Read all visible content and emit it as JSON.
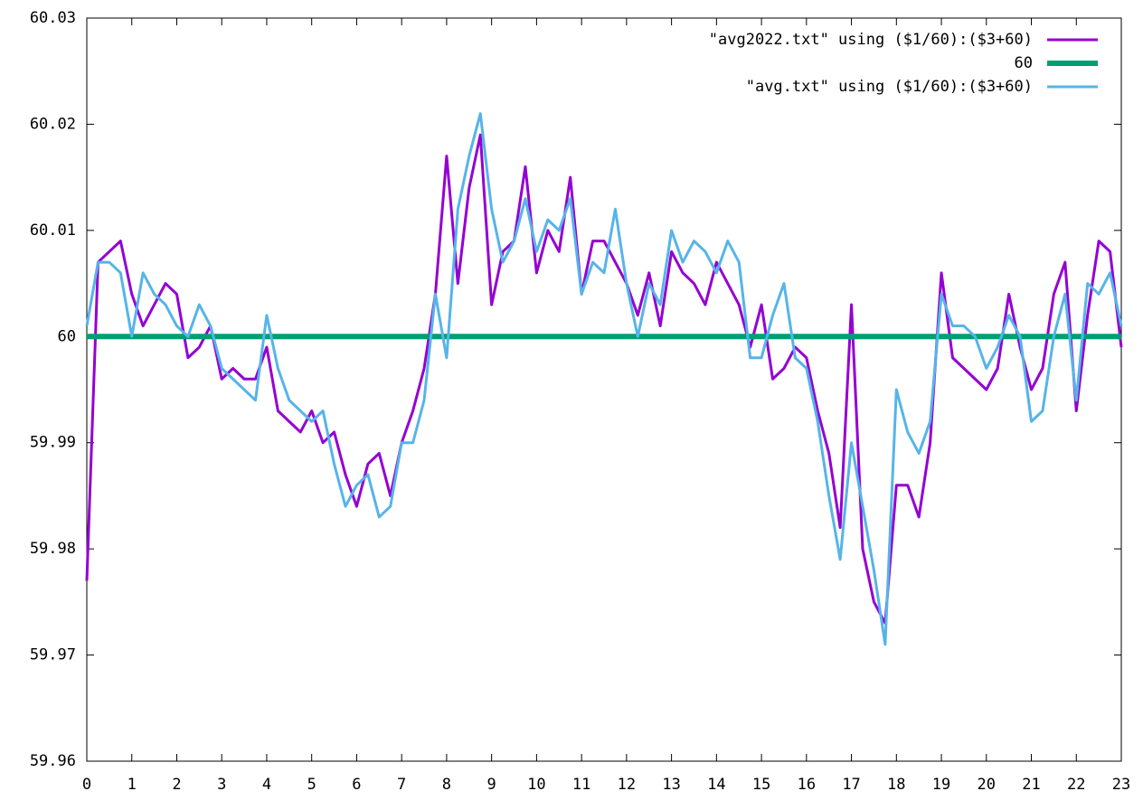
{
  "chart_data": {
    "type": "line",
    "x": [
      0,
      0.25,
      0.5,
      0.75,
      1,
      1.25,
      1.5,
      1.75,
      2,
      2.25,
      2.5,
      2.75,
      3,
      3.25,
      3.5,
      3.75,
      4,
      4.25,
      4.5,
      4.75,
      5,
      5.25,
      5.5,
      5.75,
      6,
      6.25,
      6.5,
      6.75,
      7,
      7.25,
      7.5,
      7.75,
      8,
      8.25,
      8.5,
      8.75,
      9,
      9.25,
      9.5,
      9.75,
      10,
      10.25,
      10.5,
      10.75,
      11,
      11.25,
      11.5,
      11.75,
      12,
      12.25,
      12.5,
      12.75,
      13,
      13.25,
      13.5,
      13.75,
      14,
      14.25,
      14.5,
      14.75,
      15,
      15.25,
      15.5,
      15.75,
      16,
      16.25,
      16.5,
      16.75,
      17,
      17.25,
      17.5,
      17.75,
      18,
      18.25,
      18.5,
      18.75,
      19,
      19.25,
      19.5,
      19.75,
      20,
      20.25,
      20.5,
      20.75,
      21,
      21.25,
      21.5,
      21.75,
      22,
      22.25,
      22.5,
      22.75,
      23
    ],
    "series": [
      {
        "name": "\"avg2022.txt\" using ($1/60):($3+60)",
        "color": "#9400d3",
        "values": [
          59.977,
          60.007,
          60.008,
          60.009,
          60.004,
          60.001,
          60.003,
          60.005,
          60.004,
          59.998,
          59.999,
          60.001,
          59.996,
          59.997,
          59.996,
          59.996,
          59.999,
          59.993,
          59.992,
          59.991,
          59.993,
          59.99,
          59.991,
          59.987,
          59.984,
          59.988,
          59.989,
          59.985,
          59.99,
          59.993,
          59.997,
          60.004,
          60.017,
          60.005,
          60.014,
          60.019,
          60.003,
          60.008,
          60.009,
          60.016,
          60.006,
          60.01,
          60.008,
          60.015,
          60.004,
          60.009,
          60.009,
          60.007,
          60.005,
          60.002,
          60.006,
          60.001,
          60.008,
          60.006,
          60.005,
          60.003,
          60.007,
          60.005,
          60.003,
          59.999,
          60.003,
          59.996,
          59.997,
          59.999,
          59.998,
          59.993,
          59.989,
          59.982,
          60.003,
          59.98,
          59.975,
          59.973,
          59.986,
          59.986,
          59.983,
          59.99,
          60.006,
          59.998,
          59.997,
          59.996,
          59.995,
          59.997,
          60.004,
          59.999,
          59.995,
          59.997,
          60.004,
          60.007,
          59.993,
          60.002,
          60.009,
          60.008,
          59.999
        ]
      },
      {
        "name": "60",
        "color": "#009e73",
        "x": [
          0,
          23
        ],
        "values": [
          60,
          60
        ]
      },
      {
        "name": "\"avg.txt\" using ($1/60):($3+60)",
        "color": "#56b4e9",
        "values": [
          60.001,
          60.007,
          60.007,
          60.006,
          60.0,
          60.006,
          60.004,
          60.003,
          60.001,
          60.0,
          60.003,
          60.001,
          59.997,
          59.996,
          59.995,
          59.994,
          60.002,
          59.997,
          59.994,
          59.993,
          59.992,
          59.993,
          59.988,
          59.984,
          59.986,
          59.987,
          59.983,
          59.984,
          59.99,
          59.99,
          59.994,
          60.004,
          59.998,
          60.012,
          60.017,
          60.021,
          60.012,
          60.007,
          60.009,
          60.013,
          60.008,
          60.011,
          60.01,
          60.013,
          60.004,
          60.007,
          60.006,
          60.012,
          60.005,
          60.0,
          60.005,
          60.003,
          60.01,
          60.007,
          60.009,
          60.008,
          60.006,
          60.009,
          60.007,
          59.998,
          59.998,
          60.002,
          60.005,
          59.998,
          59.997,
          59.992,
          59.985,
          59.979,
          59.99,
          59.984,
          59.978,
          59.971,
          59.995,
          59.991,
          59.989,
          59.992,
          60.004,
          60.001,
          60.001,
          60.0,
          59.997,
          59.999,
          60.002,
          60.0,
          59.992,
          59.993,
          60.0,
          60.004,
          59.994,
          60.005,
          60.004,
          60.006,
          60.001
        ]
      }
    ],
    "xlim": [
      0,
      23
    ],
    "xticks": [
      0,
      1,
      2,
      3,
      4,
      5,
      6,
      7,
      8,
      9,
      10,
      11,
      12,
      13,
      14,
      15,
      16,
      17,
      18,
      19,
      20,
      21,
      22,
      23
    ],
    "ylim": [
      59.96,
      60.03
    ],
    "yticks": [
      59.96,
      59.97,
      59.98,
      59.99,
      60,
      60.01,
      60.02,
      60.03
    ],
    "legend": "top right"
  }
}
